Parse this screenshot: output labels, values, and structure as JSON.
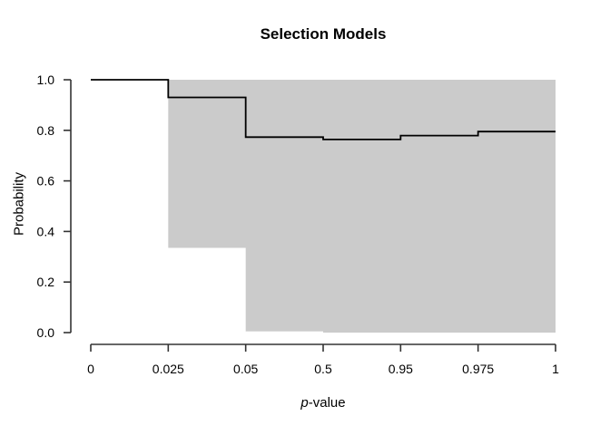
{
  "chart_data": {
    "type": "line",
    "subtype": "step-function-with-confidence-band",
    "title": "Selection Models",
    "xlabel": {
      "prefix_italic": "p",
      "suffix": "-value"
    },
    "ylabel": "Probability",
    "x_tick_labels": [
      "0",
      "0.025",
      "0.05",
      "0.5",
      "0.95",
      "0.975",
      "1"
    ],
    "x_axis_note": "ticks evenly spaced (categorical spacing of p-value cutpoints)",
    "y_tick_labels": [
      "0.0",
      "0.2",
      "0.4",
      "0.6",
      "0.8",
      "1.0"
    ],
    "y_tick_values": [
      0.0,
      0.2,
      0.4,
      0.6,
      0.8,
      1.0
    ],
    "ylim": [
      0,
      1
    ],
    "grid": "off",
    "legend": "none",
    "step_segments": [
      {
        "from": "0",
        "to": "0.025",
        "value": 1.0
      },
      {
        "from": "0.025",
        "to": "0.05",
        "value": 0.93
      },
      {
        "from": "0.05",
        "to": "0.5",
        "value": 0.773
      },
      {
        "from": "0.5",
        "to": "0.95",
        "value": 0.764
      },
      {
        "from": "0.95",
        "to": "0.975",
        "value": 0.779
      },
      {
        "from": "0.975",
        "to": "1",
        "value": 0.795
      }
    ],
    "band": {
      "starts_at_tick": "0.025",
      "segments": [
        {
          "from": "0.025",
          "to": "0.05",
          "upper": 1.0,
          "lower": 0.335
        },
        {
          "from": "0.05",
          "to": "0.5",
          "upper": 1.0,
          "lower": 0.005
        },
        {
          "from": "0.5",
          "to": "0.95",
          "upper": 1.0,
          "lower": 0.0
        },
        {
          "from": "0.95",
          "to": "0.975",
          "upper": 1.0,
          "lower": 0.0
        },
        {
          "from": "0.975",
          "to": "1",
          "upper": 1.0,
          "lower": 0.0
        }
      ],
      "color": "#cbcbcb"
    },
    "colors": {
      "line": "#000000",
      "axis": "#333333",
      "background": "#ffffff",
      "text": "#000000"
    }
  }
}
